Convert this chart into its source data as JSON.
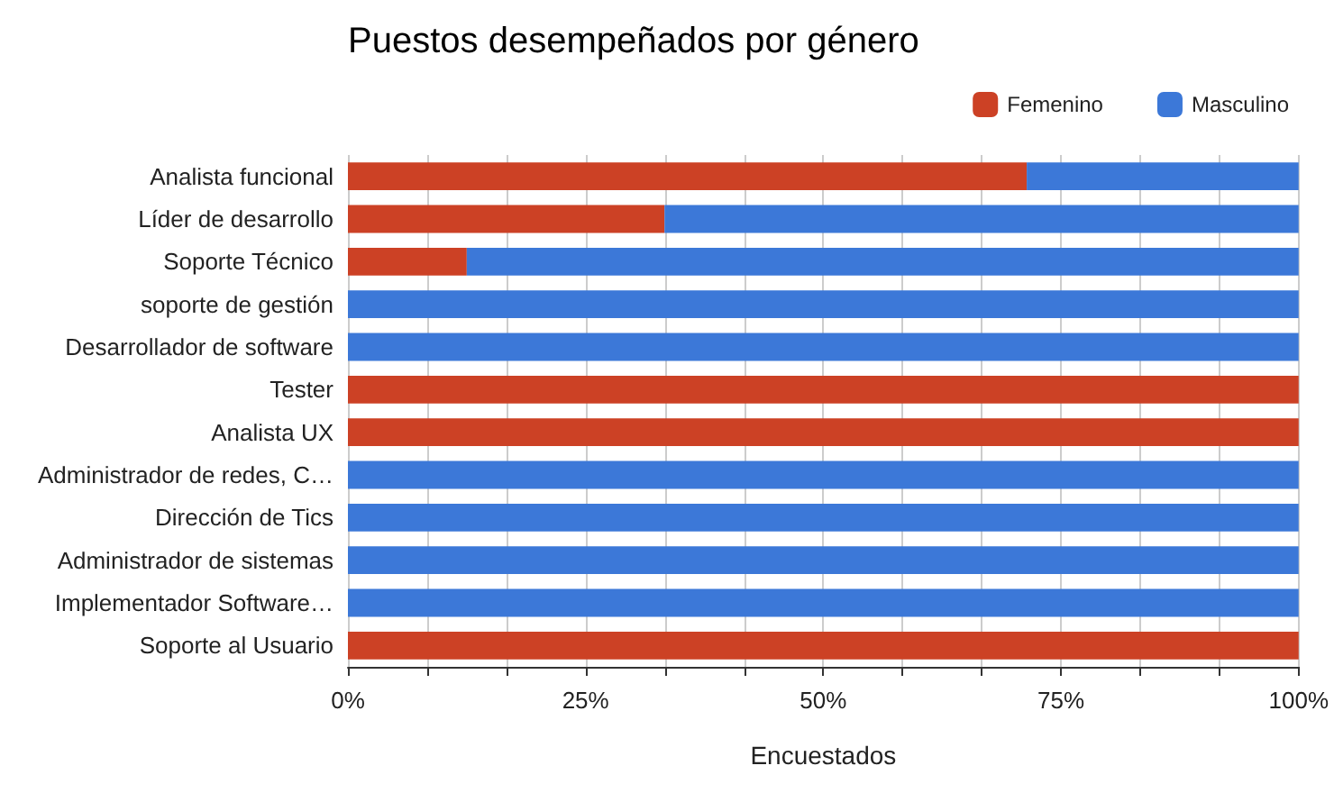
{
  "chart_data": {
    "type": "bar",
    "title": "Puestos desempeñados por género",
    "xlabel": "Encuestados",
    "orientation": "horizontal",
    "stacked": true,
    "categories": [
      "Analista funcional",
      "Líder de desarrollo",
      "Soporte Técnico",
      "soporte de gestión",
      "Desarrollador de software",
      "Tester",
      "Analista UX",
      "Administrador de redes, C…",
      "Dirección de Tics",
      "Administrador de sistemas",
      "Implementador Software…",
      "Soporte al Usuario"
    ],
    "series": [
      {
        "name": "Femenino",
        "color": "#cc4125",
        "values": [
          71.4,
          33.3,
          12.5,
          0,
          0,
          100,
          100,
          0,
          0,
          0,
          0,
          100
        ]
      },
      {
        "name": "Masculino",
        "color": "#3c78d8",
        "values": [
          28.6,
          66.7,
          87.5,
          100,
          100,
          0,
          0,
          100,
          100,
          100,
          100,
          0
        ]
      }
    ],
    "xlim": [
      0,
      100
    ],
    "xticks": [
      {
        "value": 0,
        "label": "0%"
      },
      {
        "value": 8.33,
        "label": null
      },
      {
        "value": 16.67,
        "label": null
      },
      {
        "value": 25,
        "label": "25%"
      },
      {
        "value": 33.33,
        "label": null
      },
      {
        "value": 41.67,
        "label": null
      },
      {
        "value": 50,
        "label": "50%"
      },
      {
        "value": 58.33,
        "label": null
      },
      {
        "value": 66.67,
        "label": null
      },
      {
        "value": 75,
        "label": "75%"
      },
      {
        "value": 83.33,
        "label": null
      },
      {
        "value": 91.67,
        "label": null
      },
      {
        "value": 100,
        "label": "100%"
      }
    ],
    "grid": "x",
    "legend": "top right"
  }
}
